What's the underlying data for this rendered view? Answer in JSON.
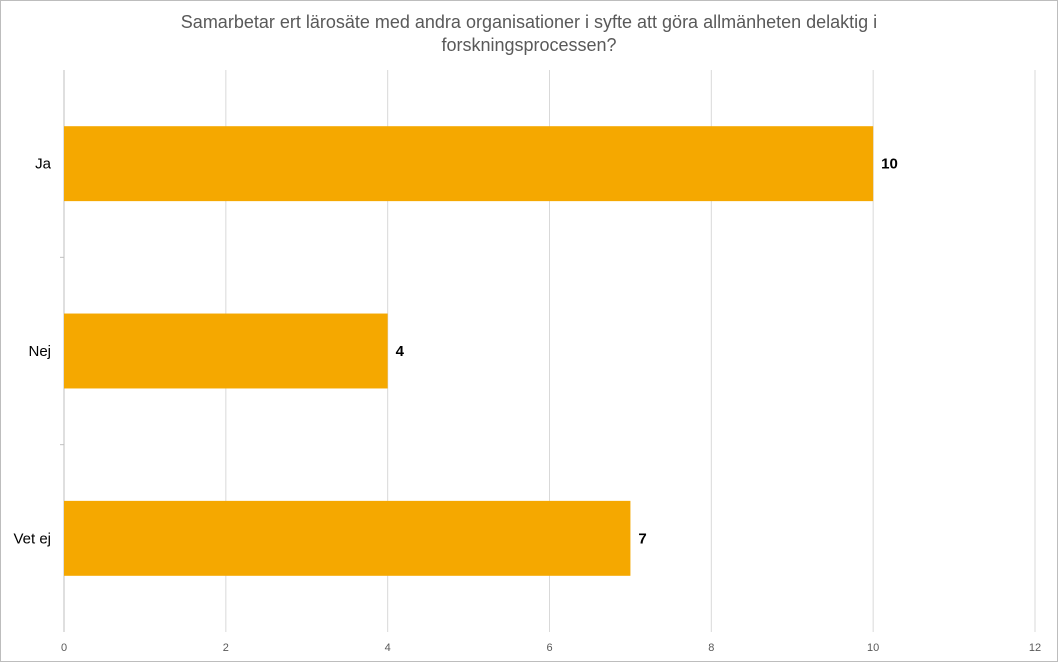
{
  "chart_data": {
    "type": "bar",
    "orientation": "horizontal",
    "title": "Samarbetar ert lärosäte med andra organisationer i syfte att göra allmänheten delaktig i forskningsprocessen?",
    "categories": [
      "Ja",
      "Nej",
      "Vet ej"
    ],
    "values": [
      10,
      4,
      7
    ],
    "data_labels": [
      "10",
      "4",
      "7"
    ],
    "xlim": [
      0,
      12
    ],
    "x_ticks": [
      "0",
      "2",
      "4",
      "6",
      "8",
      "10",
      "12"
    ],
    "xlabel": "",
    "ylabel": "",
    "grid": true,
    "legend": "none",
    "colors": {
      "bar": "#F5A800",
      "grid": "#d9d9d9",
      "title": "#595959",
      "tick": "#595959"
    }
  }
}
